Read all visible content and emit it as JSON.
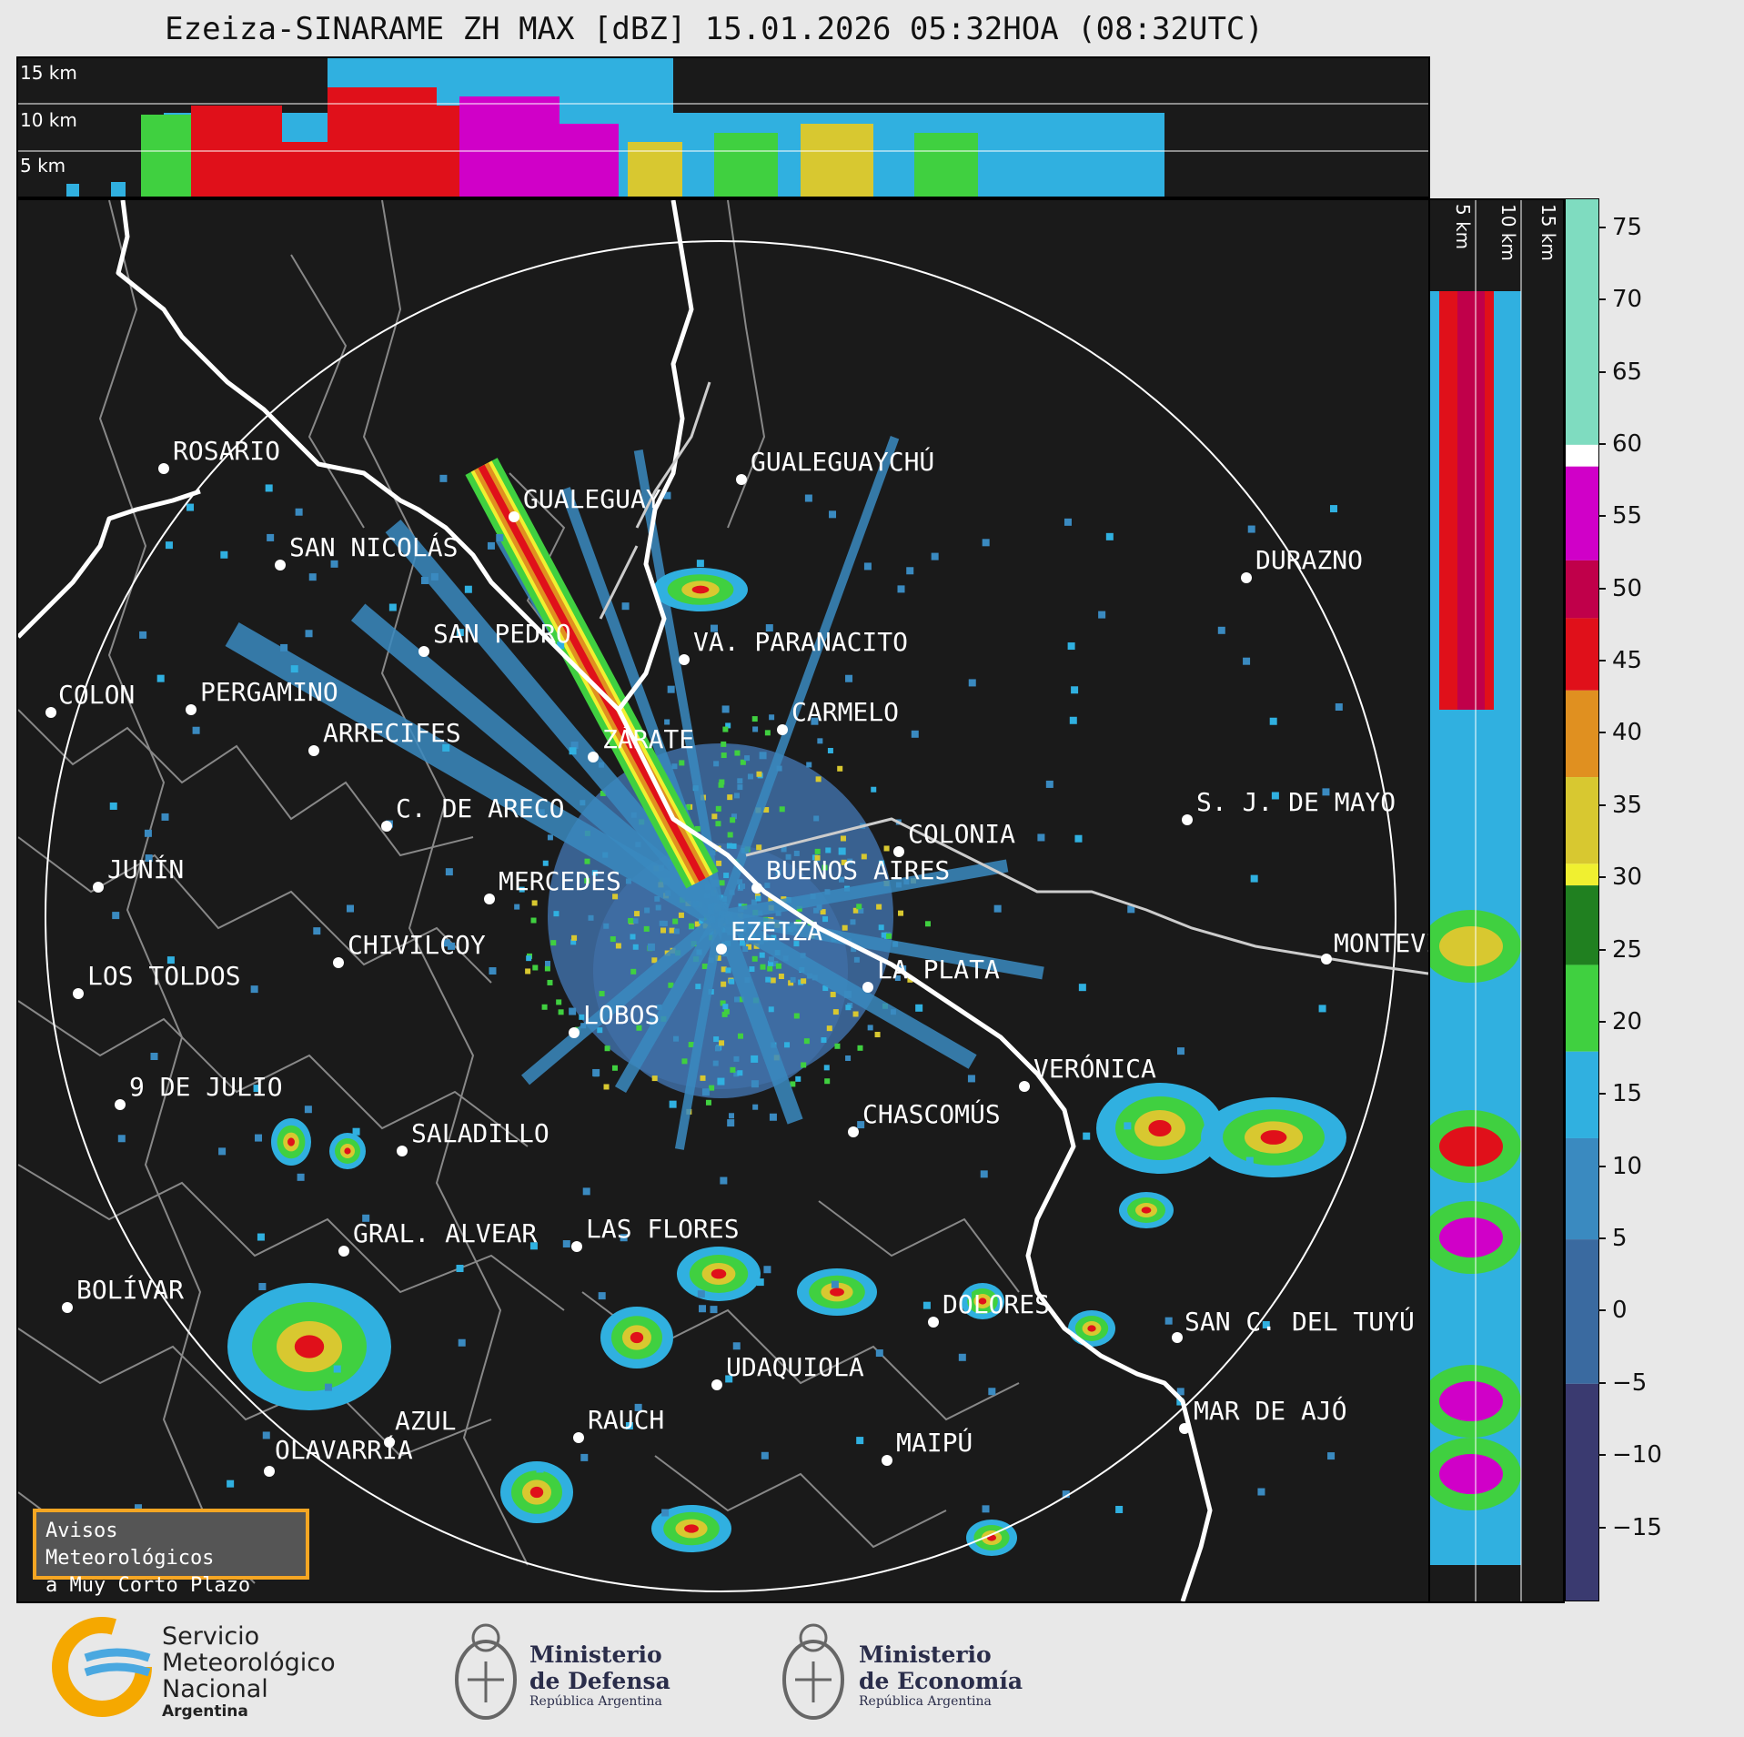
{
  "title": "Ezeiza-SINARAME ZH MAX [dBZ] 15.01.2026 05:32HOA (08:32UTC)",
  "height_labels": [
    "15 km",
    "10 km",
    "5 km"
  ],
  "colorbar": {
    "ticks": [
      "75",
      "70",
      "65",
      "60",
      "55",
      "50",
      "45",
      "40",
      "35",
      "30",
      "25",
      "20",
      "15",
      "10",
      "5",
      "0",
      "−5",
      "−10",
      "−15"
    ],
    "bands": [
      {
        "from": 60,
        "to": 77,
        "color": "#7fdcc0"
      },
      {
        "from": 58.5,
        "to": 60,
        "color": "#ffffff"
      },
      {
        "from": 52,
        "to": 58.5,
        "color": "#d000c8"
      },
      {
        "from": 48,
        "to": 52,
        "color": "#c0004a"
      },
      {
        "from": 43,
        "to": 48,
        "color": "#e0101a"
      },
      {
        "from": 37,
        "to": 43,
        "color": "#e09020"
      },
      {
        "from": 31,
        "to": 37,
        "color": "#d8c830"
      },
      {
        "from": 29.5,
        "to": 31,
        "color": "#f0f030"
      },
      {
        "from": 24,
        "to": 29.5,
        "color": "#208020"
      },
      {
        "from": 18,
        "to": 24,
        "color": "#40d040"
      },
      {
        "from": 12,
        "to": 18,
        "color": "#30b0e0"
      },
      {
        "from": 5,
        "to": 12,
        "color": "#3a8ac0"
      },
      {
        "from": -5,
        "to": 5,
        "color": "#3a6aa0"
      },
      {
        "from": -20,
        "to": -5,
        "color": "#3a3a70"
      }
    ]
  },
  "cities": [
    {
      "name": "ROSARIO"
    },
    {
      "name": "GUALEGUAYCHÚ"
    },
    {
      "name": "GUALEGUAY"
    },
    {
      "name": "SAN NICOLÁS"
    },
    {
      "name": "DURAZNO"
    },
    {
      "name": "SAN PEDRO"
    },
    {
      "name": "VA. PARANACITO"
    },
    {
      "name": "COLON"
    },
    {
      "name": "PERGAMINO"
    },
    {
      "name": "CARMELO"
    },
    {
      "name": "ARRECIFES"
    },
    {
      "name": "ZÁRATE"
    },
    {
      "name": "S. J. DE MAYO"
    },
    {
      "name": "C. DE ARECO"
    },
    {
      "name": "COLONIA"
    },
    {
      "name": "JUNÍN"
    },
    {
      "name": "BUENOS AIRES"
    },
    {
      "name": "MERCEDES"
    },
    {
      "name": "EZEIZA"
    },
    {
      "name": "MONTEVIDEO"
    },
    {
      "name": "CHIVILCOY"
    },
    {
      "name": "LA PLATA"
    },
    {
      "name": "LOS TOLDOS"
    },
    {
      "name": "LOBOS"
    },
    {
      "name": "VERÓNICA"
    },
    {
      "name": "9 DE JULIO"
    },
    {
      "name": "CHASCOMÚS"
    },
    {
      "name": "SALADILLO"
    },
    {
      "name": "GRAL. ALVEAR"
    },
    {
      "name": "LAS FLORES"
    },
    {
      "name": "BOLÍVAR"
    },
    {
      "name": "DOLORES"
    },
    {
      "name": "SAN C. DEL TUYÚ"
    },
    {
      "name": "UDAQUIOLA"
    },
    {
      "name": "MAR DE AJÓ"
    },
    {
      "name": "AZUL"
    },
    {
      "name": "RAUCH"
    },
    {
      "name": "OLAVARRÍA"
    },
    {
      "name": "MAIPÚ"
    }
  ],
  "alert_box": {
    "line1": "Avisos Meteorológicos",
    "line2": "a Muy Corto Plazo"
  },
  "footer": {
    "smn": {
      "line1": "Servicio",
      "line2": "Meteorológico",
      "line3": "Nacional",
      "line4": "Argentina"
    },
    "defensa": {
      "line1": "Ministerio",
      "line2": "de Defensa",
      "line3": "República Argentina"
    },
    "economia": {
      "line1": "Ministerio",
      "line2": "de Economía",
      "line3": "República Argentina"
    }
  },
  "colors": {
    "background": "#1a1a1a",
    "page": "#e8e8e8",
    "alert_border": "#f5a623",
    "coast": "#ffffff"
  }
}
